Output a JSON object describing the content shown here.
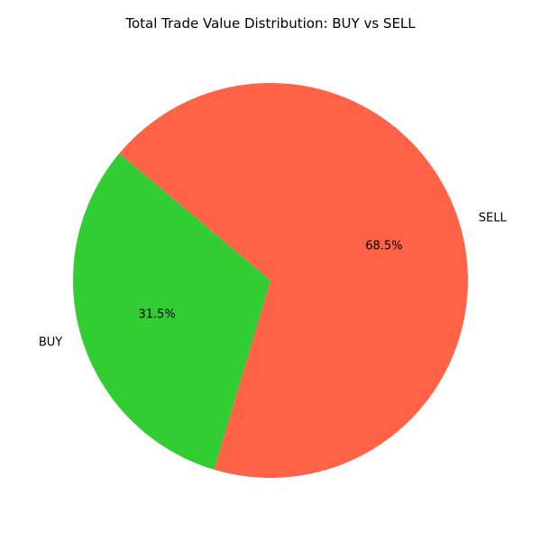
{
  "chart_data": {
    "type": "pie",
    "title": "Total Trade Value Distribution: BUY vs SELL",
    "slices": [
      {
        "label": "BUY",
        "value": 31.5,
        "percent_label": "31.5%",
        "color": "#32cd32"
      },
      {
        "label": "SELL",
        "value": 68.5,
        "percent_label": "68.5%",
        "color": "#ff6347"
      }
    ],
    "start_angle_deg": 140,
    "direction": "counterclockwise",
    "grid": false,
    "legend": "none"
  }
}
